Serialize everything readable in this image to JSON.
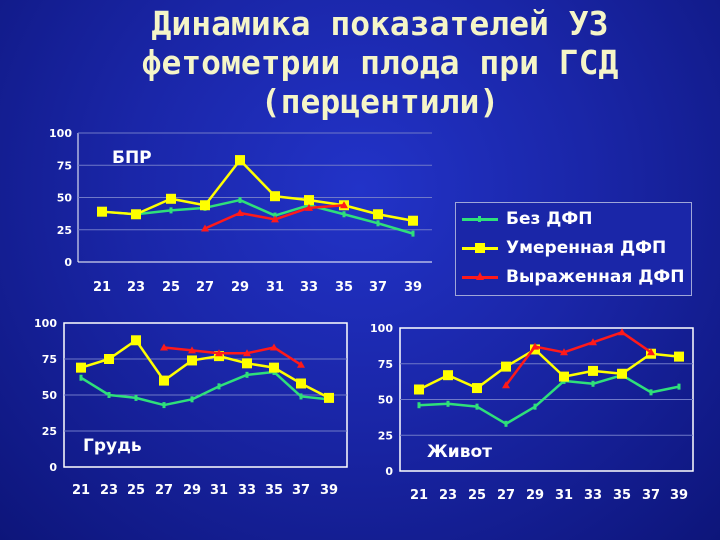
{
  "title": {
    "line1": "Динамика показателей УЗ",
    "line2": "фетометрии плода при ГСД",
    "line3": "(перцентили)"
  },
  "legend": [
    {
      "name": "Без ДФП",
      "color": "#2fe07a",
      "marker": "dash"
    },
    {
      "name": "Умеренная ДФП",
      "color": "#ffff00",
      "marker": "square"
    },
    {
      "name": "Выраженная ДФП",
      "color": "#ff1a1a",
      "marker": "triangle"
    }
  ],
  "chart_data": [
    {
      "type": "line",
      "label": "БПР",
      "categories": [
        "21",
        "23",
        "25",
        "27",
        "29",
        "31",
        "33",
        "35",
        "37",
        "39"
      ],
      "ylim": [
        0,
        100
      ],
      "yticks": [
        "0",
        "25",
        "50",
        "75",
        "100"
      ],
      "series": [
        {
          "name": "Без ДФП",
          "values": [
            39,
            37,
            40,
            42,
            48,
            36,
            44,
            37,
            30,
            22
          ]
        },
        {
          "name": "Умеренная ДФП",
          "values": [
            39,
            37,
            49,
            44,
            79,
            51,
            48,
            44,
            37,
            32
          ]
        },
        {
          "name": "Выраженная ДФП",
          "values": [
            null,
            null,
            null,
            26,
            38,
            33,
            42,
            44,
            null,
            null
          ]
        }
      ]
    },
    {
      "type": "line",
      "label": "Грудь",
      "categories": [
        "21",
        "23",
        "25",
        "27",
        "29",
        "31",
        "33",
        "35",
        "37",
        "39"
      ],
      "ylim": [
        0,
        100
      ],
      "yticks": [
        "0",
        "25",
        "50",
        "75",
        "100"
      ],
      "series": [
        {
          "name": "Без ДФП",
          "values": [
            62,
            50,
            48,
            43,
            47,
            56,
            64,
            66,
            49,
            47
          ]
        },
        {
          "name": "Умеренная ДФП",
          "values": [
            69,
            75,
            88,
            60,
            74,
            77,
            72,
            69,
            58,
            48
          ]
        },
        {
          "name": "Выраженная ДФП",
          "values": [
            null,
            null,
            null,
            83,
            81,
            79,
            79,
            83,
            71,
            null
          ]
        }
      ]
    },
    {
      "type": "line",
      "label": "Живот",
      "categories": [
        "21",
        "23",
        "25",
        "27",
        "29",
        "31",
        "33",
        "35",
        "37",
        "39"
      ],
      "ylim": [
        0,
        100
      ],
      "yticks": [
        "0",
        "25",
        "50",
        "75",
        "100"
      ],
      "series": [
        {
          "name": "Без ДФП",
          "values": [
            46,
            47,
            45,
            33,
            45,
            63,
            61,
            67,
            55,
            59
          ]
        },
        {
          "name": "Умеренная ДФП",
          "values": [
            57,
            67,
            58,
            73,
            85,
            66,
            70,
            68,
            82,
            80
          ]
        },
        {
          "name": "Выраженная ДФП",
          "values": [
            null,
            null,
            null,
            60,
            87,
            83,
            90,
            97,
            83,
            null
          ]
        }
      ]
    }
  ]
}
